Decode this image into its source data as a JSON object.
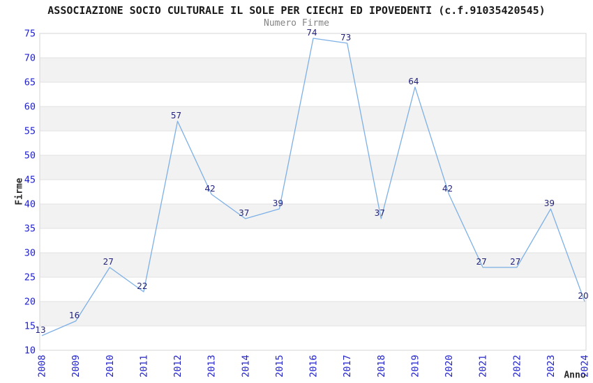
{
  "header": {
    "title": "ASSOCIAZIONE SOCIO CULTURALE IL SOLE PER CIECHI ED IPOVEDENTI (c.f.91035420545)",
    "subtitle": "Numero Firme"
  },
  "chart_data": {
    "type": "line",
    "title": "ASSOCIAZIONE SOCIO CULTURALE IL SOLE PER CIECHI ED IPOVEDENTI (c.f.91035420545)",
    "subtitle": "Numero Firme",
    "xlabel": "Anno",
    "ylabel": "Firme",
    "categories": [
      "2008",
      "2009",
      "2010",
      "2011",
      "2012",
      "2013",
      "2014",
      "2015",
      "2016",
      "2017",
      "2018",
      "2019",
      "2020",
      "2021",
      "2022",
      "2023",
      "2024"
    ],
    "series": [
      {
        "name": "Numero Firme",
        "values": [
          13,
          16,
          27,
          22,
          57,
          42,
          37,
          39,
          74,
          73,
          37,
          64,
          42,
          27,
          27,
          39,
          20
        ]
      }
    ],
    "ylim": [
      10,
      75
    ],
    "ytick_step": 5,
    "grid": "horizontal",
    "alternating_bands": true,
    "legend": "none",
    "point_labels": true,
    "colors": {
      "line": "#7db0e6",
      "tick_label": "#2121cc",
      "point_label": "#22227a",
      "band": "#f2f2f2",
      "grid_line": "#e2e2e2",
      "plot_border": "#d6d6d6",
      "title": "#1a1a1a",
      "subtitle": "#848484",
      "axis_title": "#2b2b2b",
      "background": "#ffffff"
    }
  }
}
